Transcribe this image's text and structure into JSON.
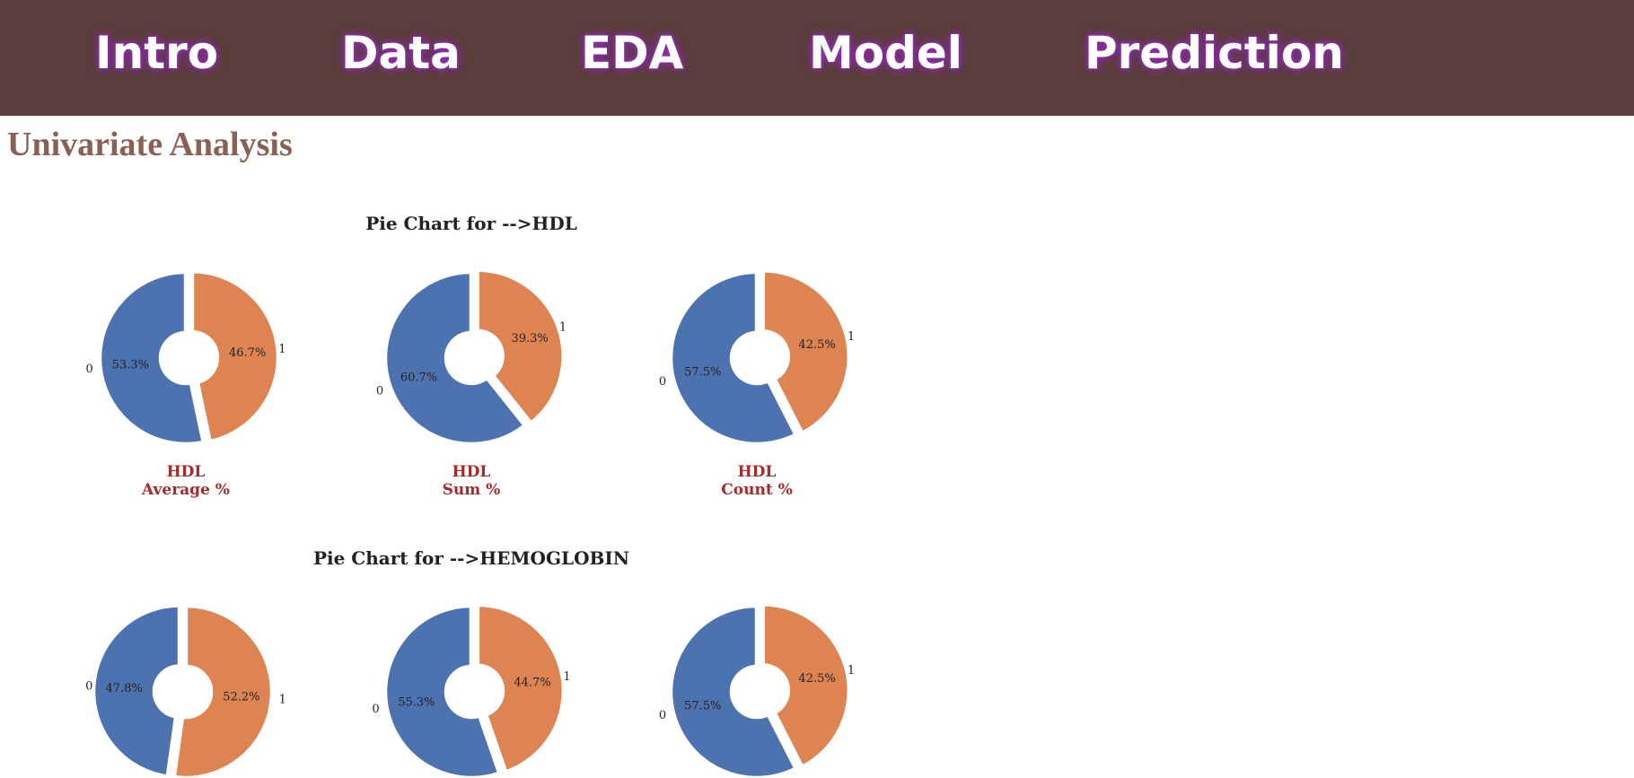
{
  "nav": {
    "items": [
      {
        "label": "Intro"
      },
      {
        "label": "Data"
      },
      {
        "label": "EDA"
      },
      {
        "label": "Model"
      },
      {
        "label": "Prediction"
      }
    ]
  },
  "page": {
    "title": "Univariate Analysis"
  },
  "colors": {
    "header_bg": "#5b3d3c",
    "nav_glow": "#8e2bb1",
    "slice_0": "#4c72b0",
    "slice_1": "#dd8452",
    "caption": "#a52a2a",
    "page_title": "#8b5f54"
  },
  "sections": [
    {
      "title": "Pie Chart for -->HDL",
      "captions": [
        {
          "line1": "HDL",
          "line2": "Average %"
        },
        {
          "line1": "HDL",
          "line2": "Sum %"
        },
        {
          "line1": "HDL",
          "line2": "Count %"
        }
      ]
    },
    {
      "title": "Pie Chart for -->HEMOGLOBIN",
      "captions": [
        {
          "line1": "",
          "line2": ""
        },
        {
          "line1": "",
          "line2": ""
        },
        {
          "line1": "",
          "line2": ""
        }
      ]
    }
  ],
  "chart_data": [
    {
      "type": "pie",
      "categories": [
        "0",
        "1"
      ],
      "values": [
        53.3,
        46.7
      ],
      "value_labels": [
        "53.3%",
        "46.7%"
      ],
      "title": "HDL Average %"
    },
    {
      "type": "pie",
      "categories": [
        "0",
        "1"
      ],
      "values": [
        60.7,
        39.3
      ],
      "value_labels": [
        "60.7%",
        "39.3%"
      ],
      "title": "HDL Sum %"
    },
    {
      "type": "pie",
      "categories": [
        "0",
        "1"
      ],
      "values": [
        57.5,
        42.5
      ],
      "value_labels": [
        "57.5%",
        "42.5%"
      ],
      "title": "HDL Count %"
    },
    {
      "type": "pie",
      "categories": [
        "0",
        "1"
      ],
      "values": [
        47.8,
        52.2
      ],
      "value_labels": [
        "47.8%",
        "52.2%"
      ]
    },
    {
      "type": "pie",
      "categories": [
        "0",
        "1"
      ],
      "values": [
        55.3,
        44.7
      ],
      "value_labels": [
        "55.3%",
        "44.7%"
      ]
    },
    {
      "type": "pie",
      "categories": [
        "0",
        "1"
      ],
      "values": [
        57.5,
        42.5
      ],
      "value_labels": [
        "57.5%",
        "42.5%"
      ]
    }
  ]
}
